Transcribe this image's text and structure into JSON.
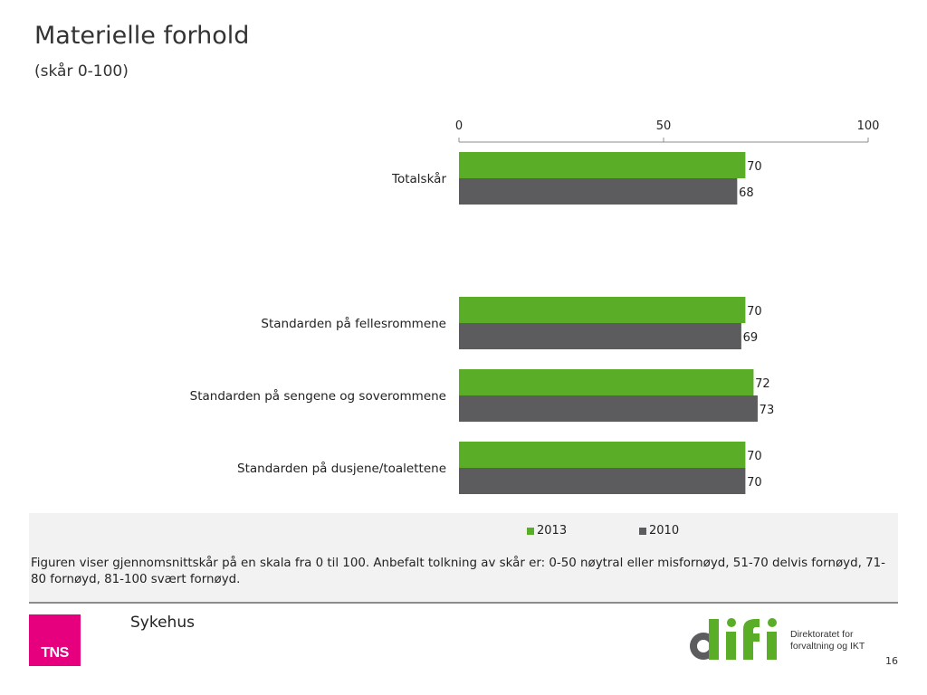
{
  "title": "Materielle forhold",
  "subtitle": "(skår 0-100)",
  "chart_data": {
    "type": "bar",
    "orientation": "horizontal",
    "categories": [
      "Totalskår",
      "Standarden på fellesrommene",
      "Standarden på sengene og soverommene",
      "Standarden på dusjene/toalettene"
    ],
    "series": [
      {
        "name": "2013",
        "color": "#5aad26",
        "values": [
          70,
          70,
          72,
          70
        ]
      },
      {
        "name": "2010",
        "color": "#5c5c5e",
        "values": [
          68,
          69,
          73,
          70
        ]
      }
    ],
    "xlim": [
      0,
      100
    ],
    "xticks": [
      0,
      50,
      100
    ],
    "axis_position": "top",
    "data_labels": true,
    "legend_position": "bottom"
  },
  "legend": [
    {
      "label": "2013",
      "color": "#5aad26"
    },
    {
      "label": "2010",
      "color": "#5c5c5e"
    }
  ],
  "note": "Figuren viser gjennomsnittskår på en skala fra 0 til 100. Anbefalt tolkning av skår er: 0-50 nøytral eller misfornøyd, 51-70 delvis fornøyd, 71-80 fornøyd, 81-100 svært fornøyd.",
  "footer": {
    "tns_logo": "TNS",
    "sector": "Sykehus",
    "difi_logo": "difi",
    "difi_line1": "Direktoratet for",
    "difi_line2": "forvaltning og IKT",
    "page_number": "16"
  }
}
